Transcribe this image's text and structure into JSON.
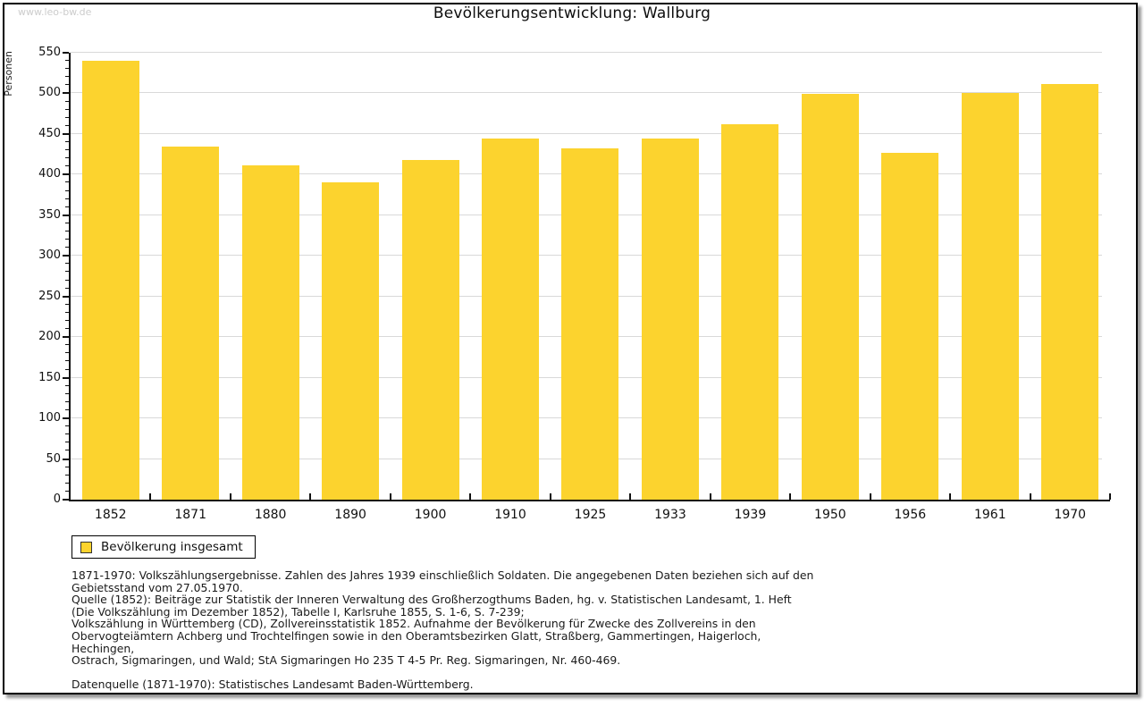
{
  "watermark": "www.leo-bw.de",
  "title": "Bevölkerungsentwicklung: Wallburg",
  "colors": {
    "bar": "#FCD32E",
    "gridline": "#D9D9D9",
    "axis": "#111111",
    "watermark_text": "#CCCCCC",
    "frame_border": "#000000"
  },
  "chart_data": {
    "type": "bar",
    "title": "Bevölkerungsentwicklung: Wallburg",
    "xlabel": "",
    "ylabel": "Personen",
    "categories": [
      "1852",
      "1871",
      "1880",
      "1890",
      "1900",
      "1910",
      "1925",
      "1933",
      "1939",
      "1950",
      "1956",
      "1961",
      "1970"
    ],
    "values": [
      540,
      434,
      411,
      390,
      418,
      444,
      432,
      444,
      462,
      499,
      427,
      500,
      511
    ],
    "series_name": "Bevölkerung insgesamt",
    "ylim": [
      0,
      550
    ],
    "ytick_step": 50,
    "yminor_step": 10,
    "grid": "horizontal-major",
    "legend_position": "bottom-left",
    "bar_color": "#FCD32E"
  },
  "legend": {
    "label": "Bevölkerung insgesamt"
  },
  "notes": {
    "lines": [
      "1871-1970: Volkszählungsergebnisse. Zahlen des Jahres 1939 einschließlich Soldaten. Die angegebenen Daten beziehen sich auf den",
      "Gebietsstand vom 27.05.1970.",
      "Quelle (1852): Beiträge zur Statistik der Inneren Verwaltung des Großherzogthums Baden, hg. v. Statistischen Landesamt, 1. Heft",
      "(Die Volkszählung im Dezember 1852), Tabelle I, Karlsruhe 1855, S. 1-6, S. 7-239;",
      "Volkszählung in Württemberg (CD), Zollvereinsstatistik 1852. Aufnahme der Bevölkerung für Zwecke des Zollvereins in den",
      "Obervogteiämtern Achberg und Trochtelfingen sowie in den Oberamtsbezirken Glatt, Straßberg, Gammertingen, Haigerloch, Hechingen,",
      "Ostrach, Sigmaringen, und Wald; StA Sigmaringen Ho 235 T 4-5 Pr. Reg. Sigmaringen, Nr. 460-469.",
      "",
      "Datenquelle (1871-1970): Statistisches Landesamt Baden-Württemberg."
    ]
  }
}
